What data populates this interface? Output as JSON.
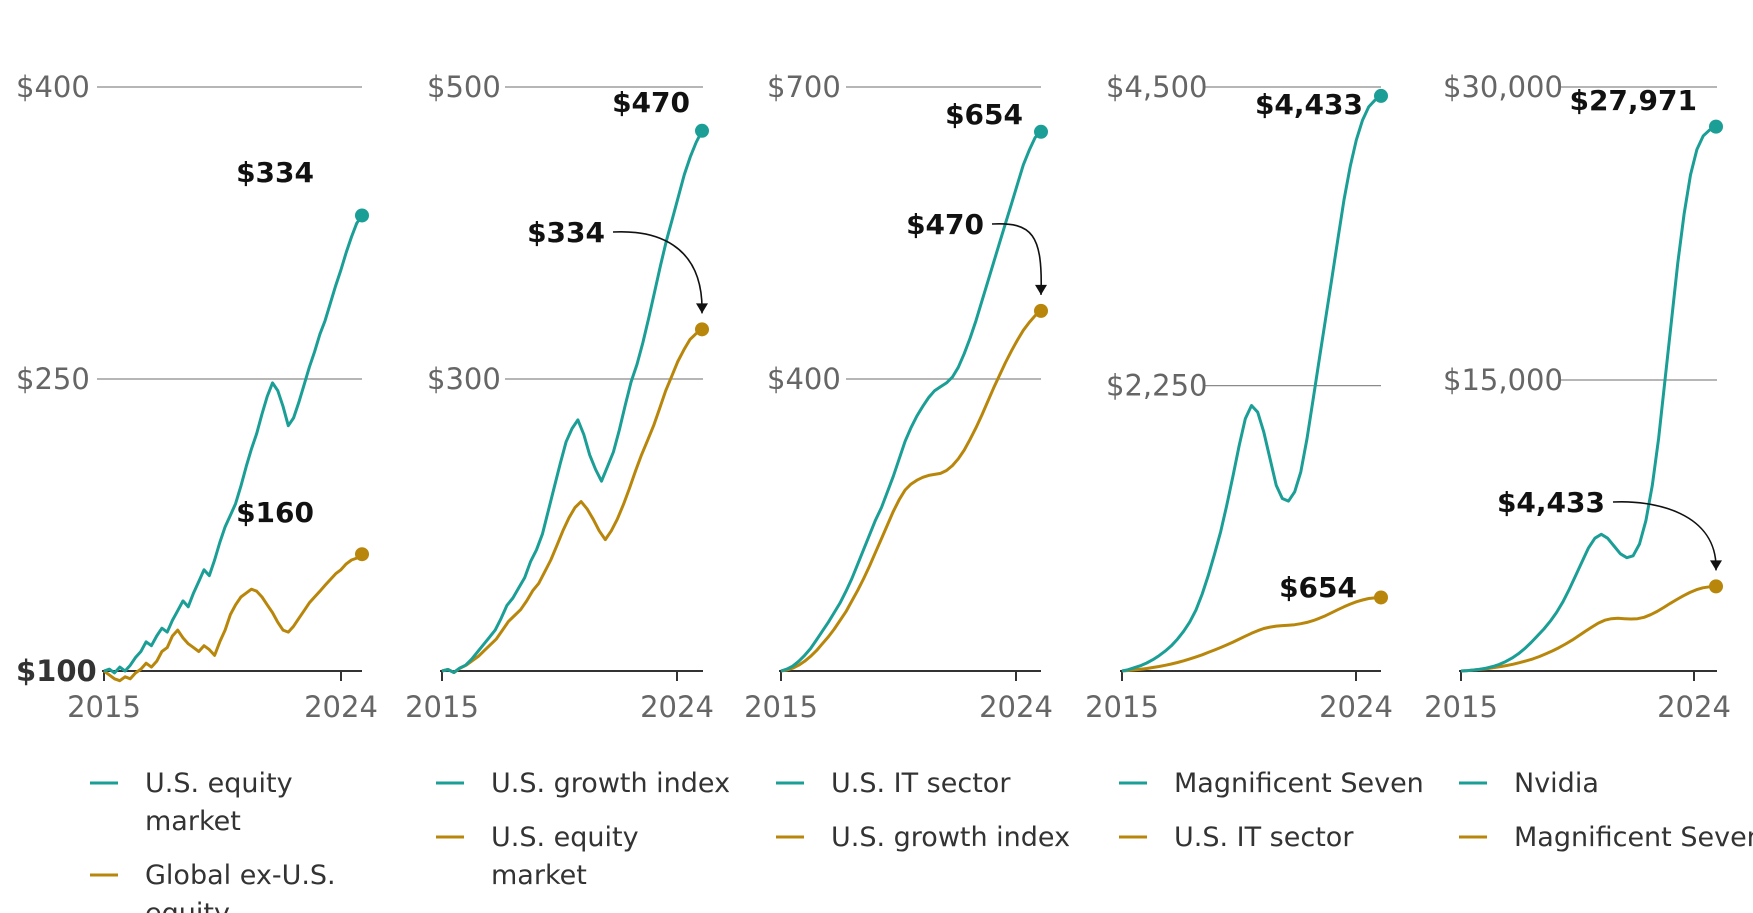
{
  "colors": {
    "teal": "#1a9e96",
    "gold": "#b8860b"
  },
  "chart_data": [
    {
      "type": "line",
      "x_range": [
        "2015",
        "2024"
      ],
      "x_tick_labels": [
        "2015",
        "2024"
      ],
      "ylim": [
        100,
        400
      ],
      "y_tick_labels": [
        "$100",
        "$250",
        "$400"
      ],
      "grid": true,
      "series": [
        {
          "name": "U.S. equity market",
          "color": "teal",
          "values": [
            100,
            101,
            99,
            102,
            100,
            103,
            107,
            110,
            115,
            113,
            118,
            122,
            120,
            126,
            131,
            136,
            133,
            140,
            146,
            152,
            149,
            157,
            166,
            174,
            180,
            186,
            195,
            205,
            214,
            222,
            232,
            241,
            248,
            244,
            236,
            226,
            230,
            238,
            247,
            256,
            264,
            273,
            280,
            289,
            298,
            306,
            315,
            323,
            330,
            334
          ],
          "end_label": "$334",
          "end_marker": true
        },
        {
          "name": "Global ex-U.S. equity",
          "color": "gold",
          "values": [
            100,
            98,
            96,
            95,
            97,
            96,
            99,
            101,
            104,
            102,
            105,
            110,
            112,
            118,
            121,
            117,
            114,
            112,
            110,
            113,
            111,
            108,
            115,
            121,
            129,
            134,
            138,
            140,
            142,
            141,
            138,
            134,
            130,
            125,
            121,
            120,
            123,
            127,
            131,
            135,
            138,
            141,
            144,
            147,
            150,
            152,
            155,
            157,
            158,
            160
          ],
          "end_label": "$160",
          "end_marker": true
        }
      ]
    },
    {
      "type": "line",
      "x_range": [
        "2015",
        "2024"
      ],
      "x_tick_labels": [
        "2015",
        "2024"
      ],
      "ylim": [
        100,
        500
      ],
      "y_tick_labels": [
        "$300",
        "$500"
      ],
      "grid": true,
      "series": [
        {
          "name": "U.S. growth index",
          "color": "teal",
          "values": [
            100,
            101,
            99,
            102,
            104,
            108,
            113,
            118,
            123,
            128,
            136,
            145,
            150,
            157,
            164,
            175,
            183,
            194,
            210,
            226,
            242,
            257,
            266,
            272,
            262,
            248,
            238,
            230,
            240,
            250,
            265,
            282,
            298,
            310,
            325,
            342,
            360,
            378,
            395,
            410,
            425,
            440,
            452,
            462,
            470
          ],
          "end_label": "$470",
          "end_marker": true
        },
        {
          "name": "U.S. equity market",
          "color": "gold",
          "values": [
            100,
            101,
            99,
            102,
            104,
            107,
            110,
            114,
            118,
            122,
            128,
            134,
            138,
            142,
            148,
            155,
            160,
            168,
            176,
            186,
            196,
            205,
            212,
            216,
            211,
            204,
            196,
            190,
            196,
            204,
            214,
            225,
            237,
            248,
            258,
            268,
            280,
            292,
            302,
            312,
            320,
            327,
            331,
            334
          ],
          "end_label": "$334",
          "end_marker": true,
          "annotation_arrow": true
        }
      ]
    },
    {
      "type": "line",
      "x_range": [
        "2015",
        "2024"
      ],
      "x_tick_labels": [
        "2015",
        "2024"
      ],
      "ylim": [
        100,
        700
      ],
      "y_tick_labels": [
        "$400",
        "$700"
      ],
      "grid": true,
      "series": [
        {
          "name": "U.S. IT sector",
          "color": "teal",
          "values": [
            100,
            102,
            105,
            110,
            116,
            123,
            132,
            141,
            150,
            160,
            170,
            182,
            195,
            210,
            225,
            240,
            255,
            268,
            284,
            300,
            318,
            336,
            350,
            362,
            372,
            381,
            388,
            392,
            396,
            402,
            412,
            426,
            442,
            460,
            480,
            500,
            520,
            540,
            560,
            580,
            600,
            620,
            635,
            648,
            654
          ],
          "end_label": "$654",
          "end_marker": true
        },
        {
          "name": "U.S. growth index",
          "color": "gold",
          "values": [
            100,
            101,
            103,
            106,
            110,
            115,
            121,
            128,
            135,
            143,
            152,
            161,
            172,
            183,
            195,
            208,
            222,
            236,
            250,
            264,
            276,
            286,
            292,
            296,
            299,
            301,
            302,
            303,
            306,
            311,
            318,
            327,
            338,
            350,
            363,
            377,
            391,
            404,
            417,
            429,
            440,
            450,
            458,
            465,
            470
          ],
          "end_label": "$470",
          "end_marker": true,
          "annotation_arrow": true
        }
      ]
    },
    {
      "type": "line",
      "x_range": [
        "2015",
        "2024"
      ],
      "x_tick_labels": [
        "2015",
        "2024"
      ],
      "ylim": [
        100,
        4500
      ],
      "y_tick_labels": [
        "$2,250",
        "$4,500"
      ],
      "grid": true,
      "series": [
        {
          "name": "Magnificent Seven",
          "color": "teal",
          "values": [
            100,
            110,
            125,
            140,
            160,
            185,
            215,
            250,
            290,
            340,
            400,
            470,
            560,
            680,
            820,
            980,
            1150,
            1350,
            1570,
            1800,
            2000,
            2100,
            2050,
            1900,
            1700,
            1500,
            1400,
            1380,
            1450,
            1600,
            1850,
            2150,
            2450,
            2750,
            3050,
            3350,
            3650,
            3900,
            4100,
            4250,
            4350,
            4400,
            4433
          ],
          "end_label": "$4,433",
          "end_marker": true
        },
        {
          "name": "U.S. IT sector",
          "color": "gold",
          "values": [
            100,
            104,
            108,
            113,
            119,
            126,
            134,
            143,
            153,
            164,
            177,
            191,
            206,
            222,
            240,
            258,
            277,
            297,
            318,
            340,
            362,
            384,
            404,
            420,
            431,
            438,
            442,
            445,
            449,
            456,
            466,
            480,
            497,
            517,
            539,
            562,
            584,
            604,
            621,
            635,
            646,
            651,
            654
          ],
          "end_label": "$654",
          "end_marker": true
        }
      ]
    },
    {
      "type": "line",
      "x_range": [
        "2015",
        "2024"
      ],
      "x_tick_labels": [
        "2015",
        "2024"
      ],
      "ylim": [
        100,
        30000
      ],
      "y_tick_labels": [
        "$15,000",
        "$30,000"
      ],
      "grid": true,
      "series": [
        {
          "name": "Nvidia",
          "color": "teal",
          "values": [
            100,
            120,
            150,
            190,
            250,
            330,
            440,
            580,
            760,
            980,
            1250,
            1560,
            1900,
            2250,
            2650,
            3100,
            3650,
            4300,
            5000,
            5700,
            6400,
            6900,
            7100,
            6900,
            6500,
            6100,
            5900,
            6000,
            6600,
            7800,
            9600,
            12000,
            15000,
            18000,
            21000,
            23500,
            25500,
            26800,
            27500,
            27800,
            27971
          ],
          "end_label": "$27,971",
          "end_marker": true
        },
        {
          "name": "Magnificent Seven",
          "color": "gold",
          "values": [
            100,
            120,
            150,
            185,
            225,
            270,
            320,
            380,
            450,
            530,
            620,
            720,
            840,
            980,
            1130,
            1300,
            1480,
            1680,
            1900,
            2130,
            2350,
            2550,
            2700,
            2780,
            2800,
            2780,
            2760,
            2780,
            2850,
            2980,
            3150,
            3350,
            3560,
            3760,
            3950,
            4120,
            4260,
            4360,
            4410,
            4433
          ],
          "end_label": "$4,433",
          "end_marker": true,
          "annotation_arrow": true
        }
      ]
    }
  ]
}
